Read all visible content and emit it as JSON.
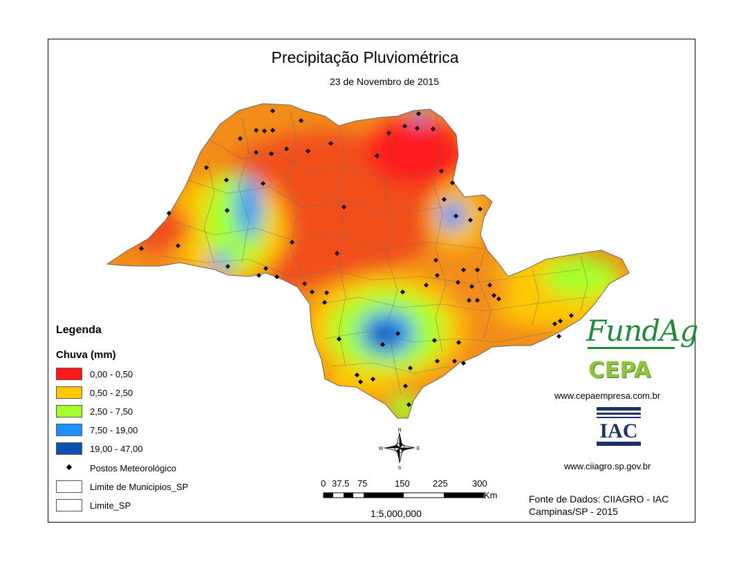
{
  "title": "Precipitação Pluviométrica",
  "subtitle": "23 de Novembro de 2015",
  "legend": {
    "title": "Legenda",
    "subtitle": "Chuva (mm)",
    "classes": [
      {
        "label": "0,00 - 0,50",
        "color": "#ff1a1a"
      },
      {
        "label": "0,50 - 2,50",
        "color": "#ffc800"
      },
      {
        "label": "2,50 - 7,50",
        "color": "#a6ff2a"
      },
      {
        "label": "7,50 - 19,00",
        "color": "#1e90ff"
      },
      {
        "label": "19,00 - 47,00",
        "color": "#0b4fb0"
      }
    ],
    "stations_label": "Postos Meteorológico",
    "municipalities_label": "Limite de Municipios_SP",
    "state_label": "Limite_SP"
  },
  "compass": {
    "n": "N",
    "s": "S",
    "e": "E",
    "w": "W"
  },
  "scale_bar": {
    "ticks": [
      "0",
      "37.5",
      "75",
      "150",
      "225",
      "300"
    ],
    "unit": "Km",
    "ratio": "1:5,000,000"
  },
  "logos": {
    "fundag": "FundAg",
    "cepa": "CEPA",
    "cepa_url": "www.cepaempresa.com.br",
    "iac": "IAC",
    "iac_url": "www.ciiagro.sp.gov.br"
  },
  "source": {
    "line1": "Fonte de Dados: CIIAGRO - IAC",
    "line2": "Campinas/SP - 2015"
  }
}
